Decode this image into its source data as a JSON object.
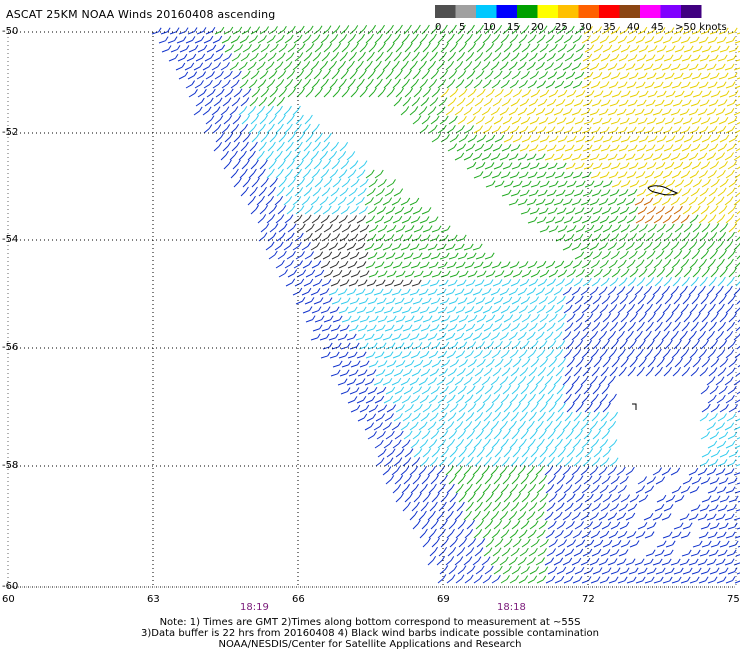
{
  "title": "ASCAT 25KM NOAA Winds 20160408 ascending",
  "legend": {
    "colors": [
      "#505050",
      "#a0a0a0",
      "#00c8ff",
      "#0000ff",
      "#00a000",
      "#ffff00",
      "#ffc000",
      "#ff6000",
      "#ff0000",
      "#8b4513",
      "#ff00ff",
      "#8000ff",
      "#400080"
    ],
    "labels": [
      "0",
      "5",
      "10",
      "15",
      "20",
      "25",
      "30",
      "35",
      "40",
      "45",
      ">50 knots"
    ]
  },
  "axes": {
    "lat_labels": [
      "-50",
      "-52",
      "-54",
      "-56",
      "-58",
      "-60"
    ],
    "lon_labels": [
      "60",
      "63",
      "66",
      "69",
      "72",
      "75"
    ],
    "times": [
      "18:19",
      "18:18"
    ]
  },
  "notes": [
    "Note: 1) Times are GMT 2)Times along bottom correspond to measurement at ~55S",
    "3)Data buffer is 22 hrs from 20160408 4) Black wind barbs indicate possible contamination",
    "NOAA/NESDIS/Center for Satellite Applications and Research"
  ],
  "colors": {
    "calm": "#303030",
    "light": "#33ccee",
    "moderate": "#1133cc",
    "fresh": "#22aa22",
    "strong": "#e8d000",
    "gale": "#cc6600"
  }
}
